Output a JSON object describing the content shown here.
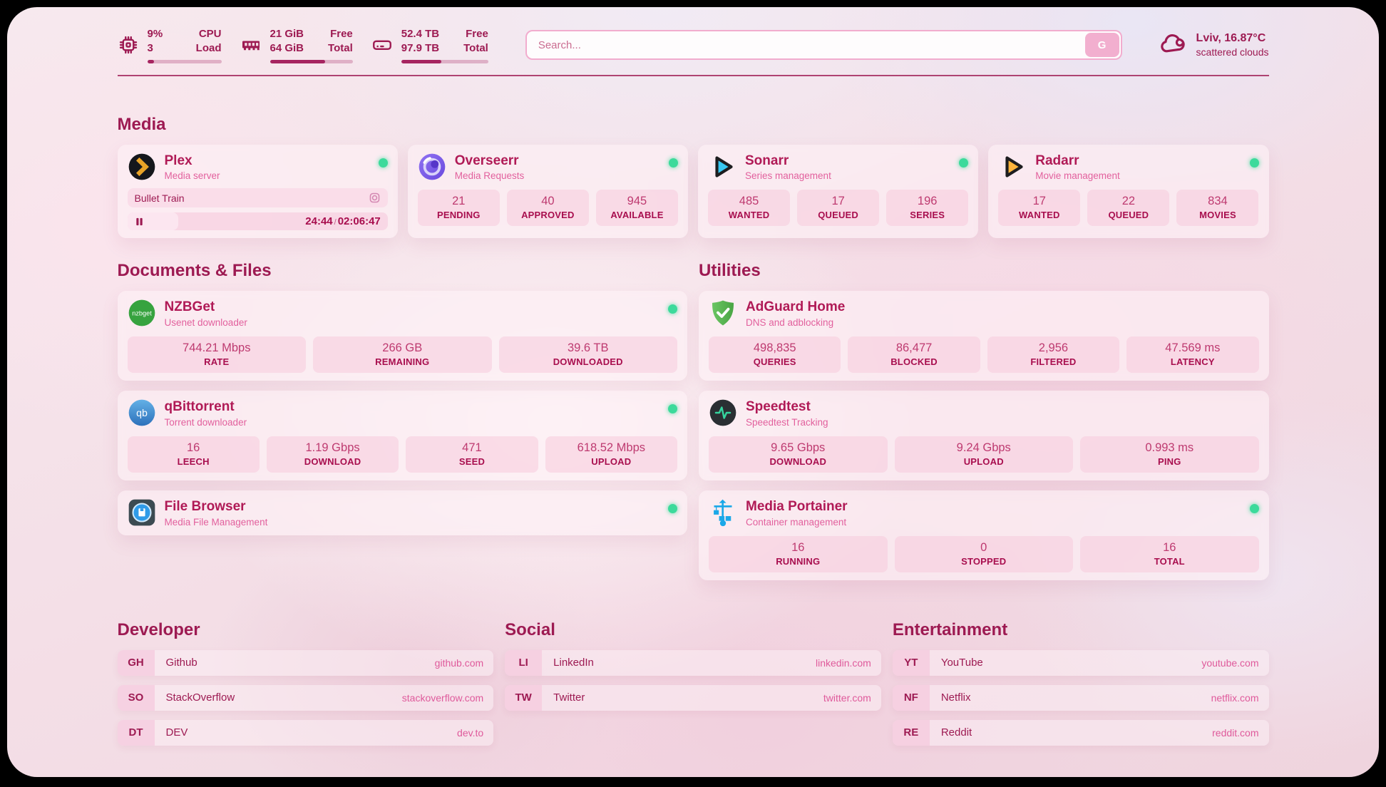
{
  "colors": {
    "accent": "#9D1A52",
    "accent-deep": "#A62560",
    "subtitle": "#E2609D",
    "online": "#3CDA9B",
    "url": "#DF5A9B"
  },
  "topbar": {
    "cpu": {
      "percent": "9%",
      "cores": "3",
      "label_top": "CPU",
      "label_bottom": "Load",
      "progress": 9
    },
    "ram": {
      "free": "21 GiB",
      "total": "64 GiB",
      "label_top": "Free",
      "label_bottom": "Total",
      "progress": 67
    },
    "disk": {
      "free": "52.4 TB",
      "total": "97.9 TB",
      "label_top": "Free",
      "label_bottom": "Total",
      "progress": 46
    },
    "search": {
      "placeholder": "Search...",
      "button_label": "G"
    },
    "weather": {
      "location": "Lviv, 16.87°C",
      "condition": "scattered clouds"
    }
  },
  "icon_labels": {
    "nzbget": "nzbget",
    "qbittorrent": "qb"
  },
  "sections": {
    "media": {
      "title": "Media",
      "apps": [
        {
          "name": "Plex",
          "desc": "Media server",
          "now_playing": "Bullet Train",
          "elapsed": "24:44",
          "separator": "/",
          "duration": "02:06:47",
          "progress": 19.5
        },
        {
          "name": "Overseerr",
          "desc": "Media Requests",
          "stats": [
            {
              "value": "21",
              "label": "PENDING"
            },
            {
              "value": "40",
              "label": "APPROVED"
            },
            {
              "value": "945",
              "label": "AVAILABLE"
            }
          ]
        },
        {
          "name": "Sonarr",
          "desc": "Series management",
          "stats": [
            {
              "value": "485",
              "label": "WANTED"
            },
            {
              "value": "17",
              "label": "QUEUED"
            },
            {
              "value": "196",
              "label": "SERIES"
            }
          ]
        },
        {
          "name": "Radarr",
          "desc": "Movie management",
          "stats": [
            {
              "value": "17",
              "label": "WANTED"
            },
            {
              "value": "22",
              "label": "QUEUED"
            },
            {
              "value": "834",
              "label": "MOVIES"
            }
          ]
        }
      ]
    },
    "documents": {
      "title": "Documents & Files",
      "apps": [
        {
          "name": "NZBGet",
          "desc": "Usenet downloader",
          "stats": [
            {
              "value": "744.21 Mbps",
              "label": "RATE"
            },
            {
              "value": "266 GB",
              "label": "REMAINING"
            },
            {
              "value": "39.6 TB",
              "label": "DOWNLOADED"
            }
          ]
        },
        {
          "name": "qBittorrent",
          "desc": "Torrent downloader",
          "stats": [
            {
              "value": "16",
              "label": "LEECH"
            },
            {
              "value": "1.19 Gbps",
              "label": "DOWNLOAD"
            },
            {
              "value": "471",
              "label": "SEED"
            },
            {
              "value": "618.52 Mbps",
              "label": "UPLOAD"
            }
          ]
        },
        {
          "name": "File Browser",
          "desc": "Media File Management"
        }
      ]
    },
    "utilities": {
      "title": "Utilities",
      "apps": [
        {
          "name": "AdGuard Home",
          "desc": "DNS and adblocking",
          "stats": [
            {
              "value": "498,835",
              "label": "QUERIES"
            },
            {
              "value": "86,477",
              "label": "BLOCKED"
            },
            {
              "value": "2,956",
              "label": "FILTERED"
            },
            {
              "value": "47.569 ms",
              "label": "LATENCY"
            }
          ]
        },
        {
          "name": "Speedtest",
          "desc": "Speedtest Tracking",
          "stats": [
            {
              "value": "9.65 Gbps",
              "label": "DOWNLOAD"
            },
            {
              "value": "9.24 Gbps",
              "label": "UPLOAD"
            },
            {
              "value": "0.993 ms",
              "label": "PING"
            }
          ]
        },
        {
          "name": "Media Portainer",
          "desc": "Container management",
          "stats": [
            {
              "value": "16",
              "label": "RUNNING"
            },
            {
              "value": "0",
              "label": "STOPPED"
            },
            {
              "value": "16",
              "label": "TOTAL"
            }
          ]
        }
      ]
    }
  },
  "bookmarks": {
    "developer": {
      "title": "Developer",
      "items": [
        {
          "abbr": "GH",
          "name": "Github",
          "url": "github.com"
        },
        {
          "abbr": "SO",
          "name": "StackOverflow",
          "url": "stackoverflow.com"
        },
        {
          "abbr": "DT",
          "name": "DEV",
          "url": "dev.to"
        }
      ]
    },
    "social": {
      "title": "Social",
      "items": [
        {
          "abbr": "LI",
          "name": "LinkedIn",
          "url": "linkedin.com"
        },
        {
          "abbr": "TW",
          "name": "Twitter",
          "url": "twitter.com"
        }
      ]
    },
    "entertainment": {
      "title": "Entertainment",
      "items": [
        {
          "abbr": "YT",
          "name": "YouTube",
          "url": "youtube.com"
        },
        {
          "abbr": "NF",
          "name": "Netflix",
          "url": "netflix.com"
        },
        {
          "abbr": "RE",
          "name": "Reddit",
          "url": "reddit.com"
        }
      ]
    }
  }
}
